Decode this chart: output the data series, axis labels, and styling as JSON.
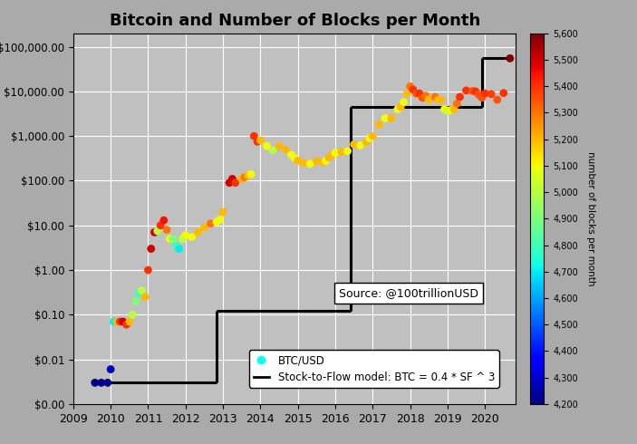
{
  "title": "Bitcoin and Number of Blocks per Month",
  "source_text": "Source: @100trillionUSD",
  "legend_dot_label": "BTC/USD",
  "legend_line_label": "Stock-to-Flow model: BTC = 0.4 * SF ^ 3",
  "colorbar_label": "number of blocks per month",
  "colorbar_min": 4200,
  "colorbar_max": 5600,
  "colorbar_ticks": [
    4200,
    4300,
    4400,
    4500,
    4600,
    4700,
    4800,
    4900,
    5000,
    5100,
    5200,
    5300,
    5400,
    5500,
    5600
  ],
  "background_color": "#aaaaaa",
  "plot_bg_color": "#c0c0c0",
  "grid_color": "#ffffff",
  "xlim_left": 2009.0,
  "xlim_right": 2020.83,
  "ytick_values": [
    0.001,
    0.01,
    0.1,
    1.0,
    10.0,
    100.0,
    1000.0,
    10000.0,
    100000.0
  ],
  "ytick_labels": [
    "$0.00",
    "$0.01",
    "$0.10",
    "$1.00",
    "$10.00",
    "$100.00",
    "$1,000.00",
    "$10,000.00",
    "$100,000.00"
  ],
  "xtick_values": [
    2009,
    2010,
    2011,
    2012,
    2013,
    2014,
    2015,
    2016,
    2017,
    2018,
    2019,
    2020
  ],
  "btc_data": [
    {
      "date": 2009.58,
      "price": 0.003,
      "blocks": 4200
    },
    {
      "date": 2009.75,
      "price": 0.003,
      "blocks": 4210
    },
    {
      "date": 2009.92,
      "price": 0.003,
      "blocks": 4220
    },
    {
      "date": 2010.0,
      "price": 0.006,
      "blocks": 4280
    },
    {
      "date": 2010.08,
      "price": 0.07,
      "blocks": 4700
    },
    {
      "date": 2010.17,
      "price": 0.07,
      "blocks": 5200
    },
    {
      "date": 2010.25,
      "price": 0.07,
      "blocks": 5400
    },
    {
      "date": 2010.33,
      "price": 0.07,
      "blocks": 5500
    },
    {
      "date": 2010.42,
      "price": 0.06,
      "blocks": 5400
    },
    {
      "date": 2010.5,
      "price": 0.07,
      "blocks": 5200
    },
    {
      "date": 2010.58,
      "price": 0.1,
      "blocks": 5000
    },
    {
      "date": 2010.67,
      "price": 0.2,
      "blocks": 4900
    },
    {
      "date": 2010.75,
      "price": 0.3,
      "blocks": 4800
    },
    {
      "date": 2010.83,
      "price": 0.35,
      "blocks": 5000
    },
    {
      "date": 2010.92,
      "price": 0.25,
      "blocks": 5200
    },
    {
      "date": 2011.0,
      "price": 1.0,
      "blocks": 5400
    },
    {
      "date": 2011.08,
      "price": 3.0,
      "blocks": 5500
    },
    {
      "date": 2011.17,
      "price": 7.0,
      "blocks": 5500
    },
    {
      "date": 2011.25,
      "price": 7.5,
      "blocks": 5000
    },
    {
      "date": 2011.33,
      "price": 10.0,
      "blocks": 5400
    },
    {
      "date": 2011.42,
      "price": 13.0,
      "blocks": 5450
    },
    {
      "date": 2011.5,
      "price": 8.0,
      "blocks": 5300
    },
    {
      "date": 2011.58,
      "price": 5.0,
      "blocks": 5100
    },
    {
      "date": 2011.67,
      "price": 5.0,
      "blocks": 4900
    },
    {
      "date": 2011.75,
      "price": 3.5,
      "blocks": 4800
    },
    {
      "date": 2011.83,
      "price": 3.0,
      "blocks": 4700
    },
    {
      "date": 2011.92,
      "price": 5.0,
      "blocks": 5000
    },
    {
      "date": 2012.0,
      "price": 6.0,
      "blocks": 5100
    },
    {
      "date": 2012.17,
      "price": 5.5,
      "blocks": 5100
    },
    {
      "date": 2012.33,
      "price": 7.0,
      "blocks": 5200
    },
    {
      "date": 2012.5,
      "price": 9.0,
      "blocks": 5200
    },
    {
      "date": 2012.67,
      "price": 11.0,
      "blocks": 5300
    },
    {
      "date": 2012.83,
      "price": 12.0,
      "blocks": 5100
    },
    {
      "date": 2012.92,
      "price": 13.5,
      "blocks": 5100
    },
    {
      "date": 2013.0,
      "price": 20.0,
      "blocks": 5200
    },
    {
      "date": 2013.17,
      "price": 90.0,
      "blocks": 5500
    },
    {
      "date": 2013.25,
      "price": 110.0,
      "blocks": 5500
    },
    {
      "date": 2013.33,
      "price": 90.0,
      "blocks": 5400
    },
    {
      "date": 2013.5,
      "price": 110.0,
      "blocks": 5200
    },
    {
      "date": 2013.58,
      "price": 120.0,
      "blocks": 5300
    },
    {
      "date": 2013.67,
      "price": 130.0,
      "blocks": 5200
    },
    {
      "date": 2013.75,
      "price": 140.0,
      "blocks": 5100
    },
    {
      "date": 2013.83,
      "price": 1000.0,
      "blocks": 5400
    },
    {
      "date": 2013.92,
      "price": 750.0,
      "blocks": 5400
    },
    {
      "date": 2014.0,
      "price": 800.0,
      "blocks": 5200
    },
    {
      "date": 2014.17,
      "price": 600.0,
      "blocks": 5100
    },
    {
      "date": 2014.33,
      "price": 480.0,
      "blocks": 5000
    },
    {
      "date": 2014.5,
      "price": 600.0,
      "blocks": 5200
    },
    {
      "date": 2014.67,
      "price": 500.0,
      "blocks": 5200
    },
    {
      "date": 2014.83,
      "price": 380.0,
      "blocks": 5100
    },
    {
      "date": 2014.92,
      "price": 320.0,
      "blocks": 5100
    },
    {
      "date": 2015.0,
      "price": 280.0,
      "blocks": 5200
    },
    {
      "date": 2015.17,
      "price": 250.0,
      "blocks": 5200
    },
    {
      "date": 2015.33,
      "price": 240.0,
      "blocks": 5100
    },
    {
      "date": 2015.5,
      "price": 275.0,
      "blocks": 5200
    },
    {
      "date": 2015.67,
      "price": 260.0,
      "blocks": 5200
    },
    {
      "date": 2015.75,
      "price": 280.0,
      "blocks": 5100
    },
    {
      "date": 2015.83,
      "price": 330.0,
      "blocks": 5200
    },
    {
      "date": 2015.92,
      "price": 380.0,
      "blocks": 5200
    },
    {
      "date": 2016.0,
      "price": 420.0,
      "blocks": 5100
    },
    {
      "date": 2016.17,
      "price": 440.0,
      "blocks": 5200
    },
    {
      "date": 2016.33,
      "price": 460.0,
      "blocks": 5100
    },
    {
      "date": 2016.5,
      "price": 650.0,
      "blocks": 5200
    },
    {
      "date": 2016.67,
      "price": 620.0,
      "blocks": 5100
    },
    {
      "date": 2016.83,
      "price": 730.0,
      "blocks": 5200
    },
    {
      "date": 2016.92,
      "price": 900.0,
      "blocks": 5100
    },
    {
      "date": 2017.0,
      "price": 1000.0,
      "blocks": 5200
    },
    {
      "date": 2017.17,
      "price": 1800.0,
      "blocks": 5200
    },
    {
      "date": 2017.33,
      "price": 2500.0,
      "blocks": 5100
    },
    {
      "date": 2017.5,
      "price": 2500.0,
      "blocks": 5200
    },
    {
      "date": 2017.67,
      "price": 4000.0,
      "blocks": 5100
    },
    {
      "date": 2017.75,
      "price": 4500.0,
      "blocks": 5200
    },
    {
      "date": 2017.83,
      "price": 5800.0,
      "blocks": 5100
    },
    {
      "date": 2017.92,
      "price": 9000.0,
      "blocks": 5200
    },
    {
      "date": 2018.0,
      "price": 13000.0,
      "blocks": 5300
    },
    {
      "date": 2018.08,
      "price": 11000.0,
      "blocks": 5400
    },
    {
      "date": 2018.17,
      "price": 9000.0,
      "blocks": 5350
    },
    {
      "date": 2018.25,
      "price": 9000.0,
      "blocks": 5400
    },
    {
      "date": 2018.33,
      "price": 7200.0,
      "blocks": 5350
    },
    {
      "date": 2018.42,
      "price": 8000.0,
      "blocks": 5300
    },
    {
      "date": 2018.5,
      "price": 6500.0,
      "blocks": 5200
    },
    {
      "date": 2018.67,
      "price": 7500.0,
      "blocks": 5300
    },
    {
      "date": 2018.75,
      "price": 6500.0,
      "blocks": 5200
    },
    {
      "date": 2018.83,
      "price": 6500.0,
      "blocks": 5200
    },
    {
      "date": 2018.92,
      "price": 4000.0,
      "blocks": 5100
    },
    {
      "date": 2019.0,
      "price": 3600.0,
      "blocks": 5000
    },
    {
      "date": 2019.08,
      "price": 3800.0,
      "blocks": 5100
    },
    {
      "date": 2019.17,
      "price": 4000.0,
      "blocks": 5200
    },
    {
      "date": 2019.25,
      "price": 5300.0,
      "blocks": 5300
    },
    {
      "date": 2019.33,
      "price": 7500.0,
      "blocks": 5400
    },
    {
      "date": 2019.5,
      "price": 10500.0,
      "blocks": 5400
    },
    {
      "date": 2019.67,
      "price": 10200.0,
      "blocks": 5350
    },
    {
      "date": 2019.75,
      "price": 10000.0,
      "blocks": 5400
    },
    {
      "date": 2019.83,
      "price": 8500.0,
      "blocks": 5350
    },
    {
      "date": 2019.92,
      "price": 7200.0,
      "blocks": 5350
    },
    {
      "date": 2020.0,
      "price": 9000.0,
      "blocks": 5400
    },
    {
      "date": 2020.17,
      "price": 8700.0,
      "blocks": 5380
    },
    {
      "date": 2020.33,
      "price": 6500.0,
      "blocks": 5350
    },
    {
      "date": 2020.5,
      "price": 9200.0,
      "blocks": 5400
    },
    {
      "date": 2020.67,
      "price": 55000.0,
      "blocks": 5600
    }
  ],
  "s2f_segments": [
    {
      "x": [
        2009.5,
        2012.83
      ],
      "y": [
        0.003,
        0.003
      ]
    },
    {
      "x": [
        2012.83,
        2012.83
      ],
      "y": [
        0.003,
        0.12
      ]
    },
    {
      "x": [
        2012.83,
        2016.42
      ],
      "y": [
        0.12,
        0.12
      ]
    },
    {
      "x": [
        2016.42,
        2016.42
      ],
      "y": [
        0.12,
        4500.0
      ]
    },
    {
      "x": [
        2016.42,
        2019.92
      ],
      "y": [
        4500.0,
        4500.0
      ]
    },
    {
      "x": [
        2019.92,
        2019.92
      ],
      "y": [
        4500.0,
        55000.0
      ]
    },
    {
      "x": [
        2019.92,
        2020.75
      ],
      "y": [
        55000.0,
        55000.0
      ]
    }
  ]
}
